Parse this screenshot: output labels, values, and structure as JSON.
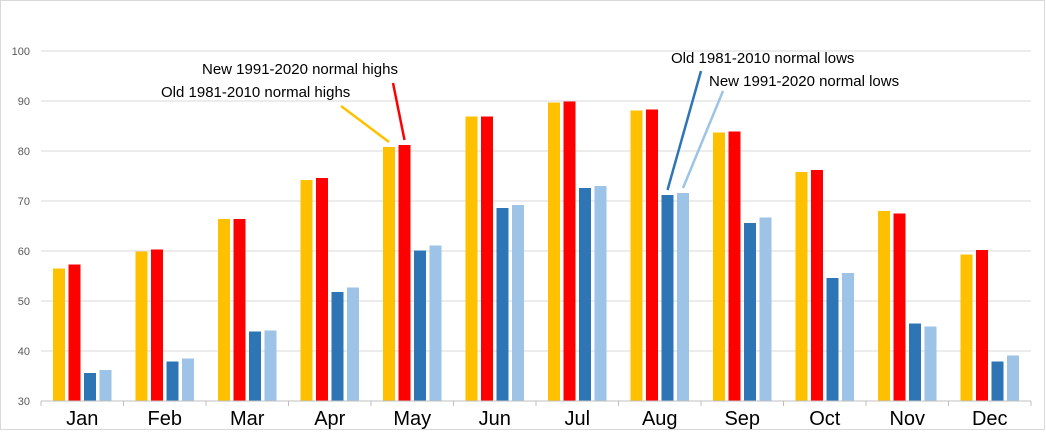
{
  "chart_data": {
    "type": "bar",
    "categories": [
      "Jan",
      "Feb",
      "Mar",
      "Apr",
      "May",
      "Jun",
      "Jul",
      "Aug",
      "Sep",
      "Oct",
      "Nov",
      "Dec"
    ],
    "ylim": [
      30,
      100
    ],
    "yticks": [
      30,
      40,
      50,
      60,
      70,
      80,
      90,
      100
    ],
    "grid": true,
    "series": [
      {
        "name": "Old 1981-2010 normal highs",
        "color": "#FFC000",
        "values": [
          56.5,
          59.9,
          66.4,
          74.2,
          80.8,
          86.9,
          89.7,
          88.1,
          83.7,
          75.8,
          68.0,
          59.3
        ]
      },
      {
        "name": "New 1991-2020 normal highs",
        "color": "#FF0000",
        "values": [
          57.3,
          60.3,
          66.4,
          74.6,
          81.2,
          86.9,
          89.9,
          88.3,
          83.9,
          76.2,
          67.5,
          60.2
        ]
      },
      {
        "name": "Old 1981-2010 normal lows",
        "color": "#2E75B6",
        "values": [
          35.6,
          37.9,
          43.9,
          51.8,
          60.1,
          68.6,
          72.6,
          71.2,
          65.6,
          54.6,
          45.5,
          37.9
        ]
      },
      {
        "name": "New 1991-2020 normal lows",
        "color": "#9DC3E6",
        "values": [
          36.2,
          38.5,
          44.1,
          52.7,
          61.1,
          69.2,
          73.0,
          71.6,
          66.7,
          55.6,
          44.9,
          39.1
        ]
      }
    ],
    "annotations": [
      {
        "text": "New 1991-2020 normal highs",
        "series": 1,
        "category": "May",
        "color": "#FF0000"
      },
      {
        "text": "Old 1981-2010 normal highs",
        "series": 0,
        "category": "May",
        "color": "#FFC000"
      },
      {
        "text": "Old 1981-2010 normal lows",
        "series": 2,
        "category": "Aug",
        "color": "#2E75B6"
      },
      {
        "text": "New 1991-2020 normal lows",
        "series": 3,
        "category": "Aug",
        "color": "#9DC3E6"
      }
    ]
  }
}
